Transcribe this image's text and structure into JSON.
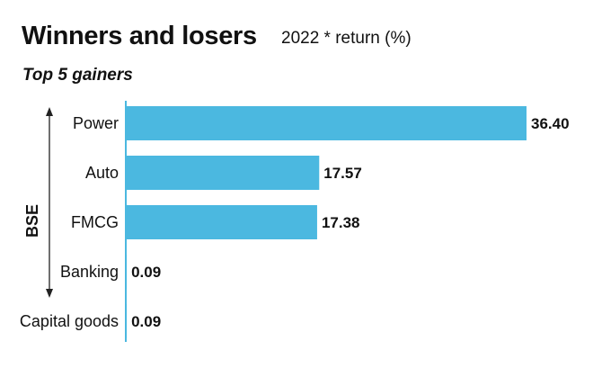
{
  "title": "Winners and losers",
  "subtitle": "2022 * return (%)",
  "section_label": "Top 5 gainers",
  "side_label": "BSE",
  "colors": {
    "bar": "#4bb8e0",
    "axis": "#4bb8e0",
    "arrow": "#222222"
  },
  "chart_data": {
    "type": "bar",
    "orientation": "horizontal",
    "title": "Winners and losers",
    "subtitle": "2022 * return (%)",
    "categories": [
      "Power",
      "Auto",
      "FMCG",
      "Banking",
      "Capital goods"
    ],
    "values": [
      36.4,
      17.57,
      17.38,
      0.09,
      0.09
    ],
    "value_labels": [
      "36.40",
      "17.57",
      "17.38",
      "0.09",
      "0.09"
    ],
    "xlim": [
      0,
      36.4
    ],
    "grid": false,
    "legend": "none"
  }
}
